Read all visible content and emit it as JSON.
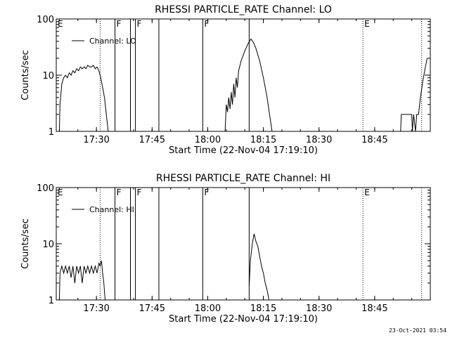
{
  "chart_data": [
    {
      "type": "line",
      "title": "RHESSI PARTICLE_RATE Channel: LO",
      "xlabel": "Start Time (22-Nov-04 17:19:10)",
      "ylabel": "Counts/sec",
      "yscale": "log",
      "xlim": [
        "17:19:10",
        "19:00:00"
      ],
      "ylim": [
        1,
        100
      ],
      "xticks": [
        "17:30",
        "17:45",
        "18:00",
        "18:15",
        "18:30",
        "18:45"
      ],
      "yticks": [
        "1",
        "10",
        "100"
      ],
      "legend": "upper-left",
      "series": [
        {
          "name": "Channel: LO",
          "segments": [
            [
              [
                "17:20:00",
                1
              ],
              [
                "17:20:10",
                3
              ],
              [
                "17:20:40",
                7
              ],
              [
                "17:21:10",
                9
              ],
              [
                "17:21:40",
                10
              ],
              [
                "17:22:10",
                9
              ],
              [
                "17:22:40",
                11
              ],
              [
                "17:23:10",
                10
              ],
              [
                "17:23:40",
                12
              ],
              [
                "17:24:10",
                11
              ],
              [
                "17:24:40",
                13
              ],
              [
                "17:25:10",
                12
              ],
              [
                "17:25:40",
                14
              ],
              [
                "17:26:10",
                13
              ],
              [
                "17:26:40",
                14
              ],
              [
                "17:27:10",
                13
              ],
              [
                "17:27:40",
                15
              ],
              [
                "17:28:10",
                14
              ],
              [
                "17:28:40",
                14
              ],
              [
                "17:29:10",
                15
              ],
              [
                "17:29:40",
                13
              ],
              [
                "17:30:10",
                14
              ],
              [
                "17:30:40",
                12
              ],
              [
                "17:31:10",
                9
              ],
              [
                "17:31:40",
                6
              ],
              [
                "17:32:10",
                4
              ],
              [
                "17:32:40",
                2
              ],
              [
                "17:33:10",
                1
              ]
            ],
            [
              [
                "18:04:40",
                1
              ],
              [
                "18:05:00",
                3
              ],
              [
                "18:05:20",
                2.2
              ],
              [
                "18:05:40",
                4
              ],
              [
                "18:06:00",
                2.5
              ],
              [
                "18:06:20",
                5
              ],
              [
                "18:06:40",
                3
              ],
              [
                "18:07:00",
                7
              ],
              [
                "18:07:20",
                4
              ],
              [
                "18:07:40",
                9
              ],
              [
                "18:08:00",
                6
              ],
              [
                "18:08:20",
                12
              ],
              [
                "18:09:00",
                18
              ],
              [
                "18:10:00",
                27
              ],
              [
                "18:11:00",
                38
              ],
              [
                "18:11:40",
                44
              ],
              [
                "18:12:20",
                38
              ],
              [
                "18:13:00",
                30
              ],
              [
                "18:14:00",
                18
              ],
              [
                "18:15:00",
                9
              ],
              [
                "18:16:00",
                4
              ],
              [
                "18:16:40",
                2
              ],
              [
                "18:17:20",
                1
              ]
            ],
            [
              [
                "18:52:00",
                1
              ],
              [
                "18:52:10",
                2
              ],
              [
                "18:55:00",
                2
              ],
              [
                "18:55:10",
                1
              ],
              [
                "18:55:30",
                2
              ],
              [
                "18:56:00",
                1
              ],
              [
                "18:56:20",
                2
              ],
              [
                "18:56:50",
                2
              ],
              [
                "18:57:20",
                4
              ],
              [
                "18:58:00",
                8
              ],
              [
                "18:58:40",
                14
              ],
              [
                "18:59:10",
                20
              ]
            ]
          ]
        }
      ],
      "solid_vlines": [
        "17:35:00",
        "17:39:10",
        "17:40:30",
        "17:46:50",
        "17:58:40",
        "18:11:10"
      ],
      "dotted_vlines": [
        "17:31:00",
        "18:41:50",
        "18:57:40"
      ],
      "flags": [
        {
          "label": "E",
          "t": "17:19:10"
        },
        {
          "label": "F",
          "t": "17:35:00"
        },
        {
          "label": "F",
          "t": "17:40:30"
        },
        {
          "label": "F",
          "t": "17:58:40"
        },
        {
          "label": "E",
          "t": "18:41:50"
        }
      ]
    },
    {
      "type": "line",
      "title": "RHESSI PARTICLE_RATE Channel: HI",
      "xlabel": "Start Time (22-Nov-04 17:19:10)",
      "ylabel": "Counts/sec",
      "yscale": "log",
      "xlim": [
        "17:19:10",
        "19:00:00"
      ],
      "ylim": [
        1,
        100
      ],
      "xticks": [
        "17:30",
        "17:45",
        "18:00",
        "18:15",
        "18:30",
        "18:45"
      ],
      "yticks": [
        "1",
        "10",
        "100"
      ],
      "legend": "upper-left",
      "series": [
        {
          "name": "Channel: HI",
          "segments": [
            [
              [
                "17:20:00",
                1
              ],
              [
                "17:20:10",
                3
              ],
              [
                "17:20:40",
                4
              ],
              [
                "17:21:10",
                3
              ],
              [
                "17:21:40",
                4
              ],
              [
                "17:22:10",
                3
              ],
              [
                "17:22:40",
                4
              ],
              [
                "17:23:10",
                2.5
              ],
              [
                "17:23:40",
                4
              ],
              [
                "17:24:10",
                2
              ],
              [
                "17:24:40",
                4
              ],
              [
                "17:25:10",
                3
              ],
              [
                "17:25:40",
                4
              ],
              [
                "17:26:10",
                2
              ],
              [
                "17:26:40",
                4
              ],
              [
                "17:27:10",
                3
              ],
              [
                "17:27:40",
                4
              ],
              [
                "17:28:10",
                3
              ],
              [
                "17:28:40",
                4
              ],
              [
                "17:29:10",
                3
              ],
              [
                "17:29:40",
                4
              ],
              [
                "17:30:10",
                3
              ],
              [
                "17:30:40",
                4.5
              ],
              [
                "17:31:00",
                4
              ],
              [
                "17:31:20",
                5
              ],
              [
                "17:31:40",
                3
              ],
              [
                "17:32:00",
                2
              ],
              [
                "17:32:20",
                1
              ]
            ],
            [
              [
                "18:11:10",
                1.8
              ],
              [
                "18:11:30",
                5
              ],
              [
                "18:12:00",
                10
              ],
              [
                "18:12:30",
                15
              ],
              [
                "18:13:00",
                11
              ],
              [
                "18:13:30",
                9
              ],
              [
                "18:14:00",
                6
              ],
              [
                "18:14:30",
                4
              ],
              [
                "18:15:00",
                3
              ],
              [
                "18:15:30",
                2
              ],
              [
                "18:16:00",
                1.5
              ],
              [
                "18:16:30",
                1
              ]
            ]
          ]
        }
      ],
      "solid_vlines": [
        "17:35:00",
        "17:39:10",
        "17:40:30",
        "17:46:50",
        "17:58:40",
        "18:11:10"
      ],
      "dotted_vlines": [
        "17:31:00",
        "18:41:50",
        "18:57:40"
      ],
      "flags": [
        {
          "label": "E",
          "t": "17:19:10"
        },
        {
          "label": "F",
          "t": "17:35:00"
        },
        {
          "label": "F",
          "t": "17:40:30"
        },
        {
          "label": "F",
          "t": "17:58:40"
        },
        {
          "label": "E",
          "t": "18:41:50"
        }
      ]
    }
  ],
  "footer": {
    "timestamp": "23-Oct-2021 03:54"
  }
}
